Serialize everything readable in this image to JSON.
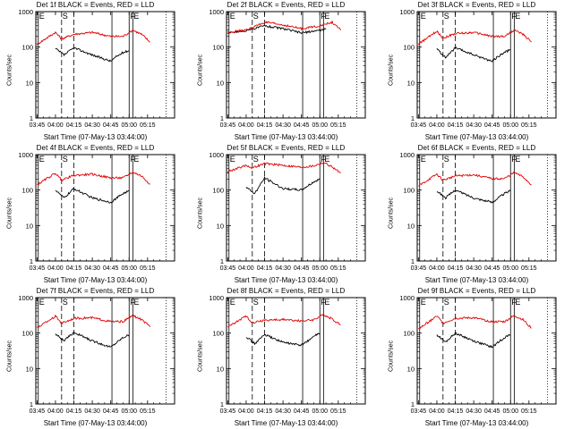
{
  "figure": {
    "xlabel": "Start Time (07-May-13 03:44:00)",
    "ylabel": "Counts/sec",
    "legend_text": "BLACK = Events, RED = LLD",
    "colors": {
      "events": "#000000",
      "lld": "#e00000",
      "axes": "#000000"
    }
  },
  "chart_data": [
    {
      "title": "Det 1f BLACK = Events, RED = LLD",
      "type": "line",
      "yscale": "log",
      "ylim": [
        1,
        1000
      ],
      "x_ticks": [
        "03:45",
        "04:00",
        "04:15",
        "04:30",
        "04:45",
        "05:00",
        "05:15"
      ],
      "y_ticks": [
        "1",
        "10",
        "100",
        "1000"
      ],
      "markers": [
        "E",
        "S",
        "F",
        "E"
      ],
      "series": [
        {
          "name": "Events",
          "color": "#000000",
          "x": [
            "04:00",
            "04:07",
            "04:15",
            "04:30",
            "04:45",
            "04:50",
            "04:55",
            "05:00"
          ],
          "y": [
            90,
            60,
            95,
            60,
            40,
            55,
            70,
            80
          ]
        },
        {
          "name": "LLD",
          "color": "#e00000",
          "x": [
            "03:45",
            "04:00",
            "04:05",
            "04:15",
            "04:30",
            "04:45",
            "04:55",
            "05:03",
            "05:10",
            "05:17"
          ],
          "y": [
            120,
            260,
            170,
            230,
            260,
            200,
            200,
            300,
            230,
            140
          ]
        }
      ]
    },
    {
      "title": "Det 2f BLACK = Events, RED = LLD",
      "type": "line",
      "yscale": "log",
      "ylim": [
        1,
        1000
      ],
      "x_ticks": [
        "03:45",
        "04:00",
        "04:15",
        "04:30",
        "04:45",
        "05:00",
        "05:15"
      ],
      "y_ticks": [
        "1",
        "10",
        "100",
        "1000"
      ],
      "markers": [
        "E",
        "S",
        "F",
        "E"
      ],
      "series": [
        {
          "name": "Events",
          "color": "#000000",
          "x": [
            "03:45",
            "04:00",
            "04:15",
            "04:30",
            "04:45",
            "05:00",
            "05:05"
          ],
          "y": [
            250,
            290,
            400,
            330,
            250,
            300,
            320
          ]
        },
        {
          "name": "LLD",
          "color": "#e00000",
          "x": [
            "03:45",
            "04:00",
            "04:15",
            "04:30",
            "04:45",
            "05:00",
            "05:10",
            "05:17"
          ],
          "y": [
            260,
            300,
            500,
            420,
            330,
            400,
            500,
            300
          ]
        }
      ]
    },
    {
      "title": "Det 3f BLACK = Events, RED = LLD",
      "type": "line",
      "yscale": "log",
      "ylim": [
        1,
        1000
      ],
      "x_ticks": [
        "03:45",
        "04:00",
        "04:15",
        "04:30",
        "04:45",
        "05:00",
        "05:15"
      ],
      "y_ticks": [
        "1",
        "10",
        "100",
        "1000"
      ],
      "markers": [
        "E",
        "S",
        "F",
        "E"
      ],
      "series": [
        {
          "name": "Events",
          "color": "#000000",
          "x": [
            "04:00",
            "04:07",
            "04:15",
            "04:30",
            "04:45",
            "04:50",
            "04:55",
            "05:00"
          ],
          "y": [
            90,
            50,
            95,
            60,
            40,
            55,
            70,
            85
          ]
        },
        {
          "name": "LLD",
          "color": "#e00000",
          "x": [
            "03:45",
            "04:00",
            "04:05",
            "04:15",
            "04:30",
            "04:45",
            "04:55",
            "05:03",
            "05:10",
            "05:17"
          ],
          "y": [
            120,
            280,
            180,
            240,
            260,
            200,
            200,
            300,
            230,
            140
          ]
        }
      ]
    },
    {
      "title": "Det 4f BLACK = Events, RED = LLD",
      "type": "line",
      "yscale": "log",
      "ylim": [
        1,
        1000
      ],
      "x_ticks": [
        "03:45",
        "04:00",
        "04:15",
        "04:30",
        "04:45",
        "05:00",
        "05:15"
      ],
      "y_ticks": [
        "1",
        "10",
        "100",
        "1000"
      ],
      "markers": [
        "E",
        "S",
        "F",
        "E"
      ],
      "series": [
        {
          "name": "Events",
          "color": "#000000",
          "x": [
            "04:00",
            "04:07",
            "04:15",
            "04:30",
            "04:45",
            "04:50",
            "04:55",
            "05:00"
          ],
          "y": [
            100,
            60,
            110,
            60,
            45,
            60,
            80,
            95
          ]
        },
        {
          "name": "LLD",
          "color": "#e00000",
          "x": [
            "03:45",
            "04:00",
            "04:05",
            "04:15",
            "04:30",
            "04:45",
            "04:55",
            "05:03",
            "05:10",
            "05:17"
          ],
          "y": [
            140,
            300,
            190,
            260,
            280,
            220,
            220,
            320,
            250,
            150
          ]
        }
      ]
    },
    {
      "title": "Det 5f BLACK = Events, RED = LLD",
      "type": "line",
      "yscale": "log",
      "ylim": [
        1,
        1000
      ],
      "x_ticks": [
        "03:45",
        "04:00",
        "04:15",
        "04:30",
        "04:45",
        "05:00",
        "05:15"
      ],
      "y_ticks": [
        "1",
        "10",
        "100",
        "1000"
      ],
      "markers": [
        "E",
        "S",
        "F",
        "E"
      ],
      "series": [
        {
          "name": "Events",
          "color": "#000000",
          "x": [
            "04:00",
            "04:07",
            "04:15",
            "04:30",
            "04:45",
            "04:50",
            "04:55",
            "05:00"
          ],
          "y": [
            120,
            80,
            220,
            110,
            100,
            130,
            170,
            200
          ]
        },
        {
          "name": "LLD",
          "color": "#e00000",
          "x": [
            "03:45",
            "04:00",
            "04:05",
            "04:15",
            "04:30",
            "04:45",
            "04:55",
            "05:03",
            "05:10",
            "05:17"
          ],
          "y": [
            330,
            500,
            420,
            560,
            500,
            440,
            480,
            600,
            450,
            300
          ]
        }
      ]
    },
    {
      "title": "Det 6f BLACK = Events, RED = LLD",
      "type": "line",
      "yscale": "log",
      "ylim": [
        1,
        1000
      ],
      "x_ticks": [
        "03:45",
        "04:00",
        "04:15",
        "04:30",
        "04:45",
        "05:00",
        "05:15"
      ],
      "y_ticks": [
        "1",
        "10",
        "100",
        "1000"
      ],
      "markers": [
        "E",
        "S",
        "F",
        "E"
      ],
      "series": [
        {
          "name": "Events",
          "color": "#000000",
          "x": [
            "04:00",
            "04:07",
            "04:15",
            "04:30",
            "04:45",
            "04:50",
            "04:55",
            "05:00"
          ],
          "y": [
            95,
            60,
            100,
            60,
            45,
            60,
            80,
            95
          ]
        },
        {
          "name": "LLD",
          "color": "#e00000",
          "x": [
            "03:45",
            "04:00",
            "04:05",
            "04:15",
            "04:30",
            "04:45",
            "04:55",
            "05:03",
            "05:10",
            "05:17"
          ],
          "y": [
            130,
            280,
            190,
            250,
            270,
            210,
            210,
            310,
            240,
            140
          ]
        }
      ]
    },
    {
      "title": "Det 7f BLACK = Events, RED = LLD",
      "type": "line",
      "yscale": "log",
      "ylim": [
        1,
        1000
      ],
      "x_ticks": [
        "03:45",
        "04:00",
        "04:15",
        "04:30",
        "04:45",
        "05:00",
        "05:15"
      ],
      "y_ticks": [
        "1",
        "10",
        "100",
        "1000"
      ],
      "markers": [
        "E",
        "S",
        "F",
        "E"
      ],
      "series": [
        {
          "name": "Events",
          "color": "#000000",
          "x": [
            "04:00",
            "04:07",
            "04:15",
            "04:30",
            "04:45",
            "04:50",
            "04:55",
            "05:00"
          ],
          "y": [
            95,
            60,
            105,
            60,
            40,
            55,
            75,
            90
          ]
        },
        {
          "name": "LLD",
          "color": "#e00000",
          "x": [
            "03:45",
            "04:00",
            "04:05",
            "04:15",
            "04:30",
            "04:45",
            "04:55",
            "05:03",
            "05:10",
            "05:17"
          ],
          "y": [
            140,
            300,
            190,
            260,
            270,
            210,
            210,
            310,
            240,
            150
          ]
        }
      ]
    },
    {
      "title": "Det 8f BLACK = Events, RED = LLD",
      "type": "line",
      "yscale": "log",
      "ylim": [
        1,
        1000
      ],
      "x_ticks": [
        "03:45",
        "04:00",
        "04:15",
        "04:30",
        "04:45",
        "05:00",
        "05:15"
      ],
      "y_ticks": [
        "1",
        "10",
        "100",
        "1000"
      ],
      "markers": [
        "E",
        "S",
        "F",
        "E"
      ],
      "series": [
        {
          "name": "Events",
          "color": "#000000",
          "x": [
            "04:00",
            "04:07",
            "04:15",
            "04:30",
            "04:45",
            "04:50",
            "04:55",
            "05:00"
          ],
          "y": [
            80,
            50,
            90,
            55,
            45,
            60,
            80,
            100
          ]
        },
        {
          "name": "LLD",
          "color": "#e00000",
          "x": [
            "03:45",
            "04:00",
            "04:05",
            "04:15",
            "04:30",
            "04:45",
            "04:55",
            "05:03",
            "05:10",
            "05:17"
          ],
          "y": [
            150,
            300,
            200,
            230,
            240,
            220,
            240,
            330,
            250,
            170
          ]
        }
      ]
    },
    {
      "title": "Det 9f BLACK = Events, RED = LLD",
      "type": "line",
      "yscale": "log",
      "ylim": [
        1,
        1000
      ],
      "x_ticks": [
        "03:45",
        "04:00",
        "04:15",
        "04:30",
        "04:45",
        "05:00",
        "05:15"
      ],
      "y_ticks": [
        "1",
        "10",
        "100",
        "1000"
      ],
      "markers": [
        "E",
        "S",
        "F",
        "E"
      ],
      "series": [
        {
          "name": "Events",
          "color": "#000000",
          "x": [
            "04:00",
            "04:07",
            "04:15",
            "04:30",
            "04:45",
            "04:50",
            "04:55",
            "05:00"
          ],
          "y": [
            90,
            55,
            100,
            60,
            40,
            55,
            75,
            90
          ]
        },
        {
          "name": "LLD",
          "color": "#e00000",
          "x": [
            "03:45",
            "04:00",
            "04:05",
            "04:15",
            "04:30",
            "04:45",
            "04:55",
            "05:03",
            "05:10",
            "05:17"
          ],
          "y": [
            130,
            300,
            190,
            260,
            270,
            210,
            210,
            310,
            240,
            140
          ]
        }
      ]
    }
  ]
}
